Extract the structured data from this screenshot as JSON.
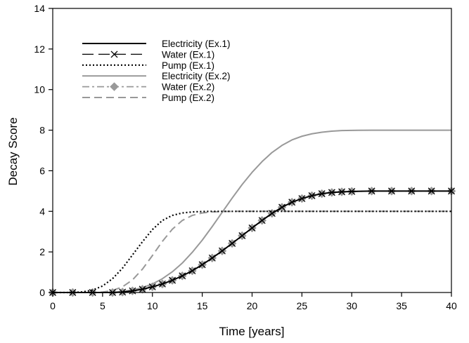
{
  "chart_data": {
    "type": "line",
    "title": "",
    "xlabel": "Time [years]",
    "ylabel": "Decay Score",
    "xlim": [
      0,
      40
    ],
    "ylim": [
      0,
      14
    ],
    "xticks": [
      0,
      5,
      10,
      15,
      20,
      25,
      30,
      35,
      40
    ],
    "yticks": [
      0,
      2,
      4,
      6,
      8,
      10,
      12,
      14
    ],
    "grid": false,
    "legend_position": "top-left",
    "series": [
      {
        "name": "Electricity (Ex.1)",
        "color": "#000000",
        "style": "solid",
        "x": [
          0,
          2,
          4,
          6,
          7,
          8,
          9,
          10,
          11,
          12,
          13,
          14,
          15,
          16,
          17,
          18,
          19,
          20,
          21,
          22,
          23,
          24,
          25,
          26,
          27,
          28,
          29,
          30,
          32,
          34,
          36,
          38,
          40
        ],
        "y": [
          0,
          0,
          0,
          0,
          0.02,
          0.08,
          0.16,
          0.28,
          0.42,
          0.6,
          0.82,
          1.07,
          1.37,
          1.7,
          2.05,
          2.42,
          2.8,
          3.18,
          3.55,
          3.9,
          4.2,
          4.45,
          4.63,
          4.77,
          4.87,
          4.93,
          4.96,
          4.98,
          5,
          5,
          5,
          5,
          5
        ]
      },
      {
        "name": "Water (Ex.1)",
        "color": "#000000",
        "style": "longdash-x",
        "x": [
          0,
          2,
          4,
          6,
          7,
          8,
          9,
          10,
          11,
          12,
          13,
          14,
          15,
          16,
          17,
          18,
          19,
          20,
          21,
          22,
          23,
          24,
          25,
          26,
          27,
          28,
          29,
          30,
          32,
          34,
          36,
          38,
          40
        ],
        "y": [
          0,
          0,
          0,
          0,
          0.02,
          0.08,
          0.16,
          0.28,
          0.42,
          0.6,
          0.82,
          1.07,
          1.37,
          1.7,
          2.05,
          2.42,
          2.8,
          3.18,
          3.55,
          3.9,
          4.2,
          4.45,
          4.63,
          4.77,
          4.87,
          4.93,
          4.96,
          4.98,
          5,
          5,
          5,
          5,
          5
        ]
      },
      {
        "name": "Pump (Ex.1)",
        "color": "#000000",
        "style": "dotted",
        "x": [
          0,
          2,
          3,
          4,
          5,
          6,
          7,
          8,
          9,
          10,
          11,
          12,
          13,
          14,
          15,
          16,
          18,
          20,
          25,
          30,
          35,
          40
        ],
        "y": [
          0,
          0,
          0.03,
          0.12,
          0.32,
          0.68,
          1.2,
          1.85,
          2.5,
          3.1,
          3.55,
          3.8,
          3.92,
          3.97,
          3.99,
          4,
          4,
          4,
          4,
          4,
          4,
          4
        ]
      },
      {
        "name": "Electricity (Ex.2)",
        "color": "#999999",
        "style": "solid",
        "x": [
          0,
          4,
          6,
          7,
          8,
          9,
          10,
          11,
          12,
          13,
          14,
          15,
          16,
          17,
          18,
          19,
          20,
          21,
          22,
          23,
          24,
          25,
          26,
          27,
          28,
          29,
          30,
          32,
          35,
          40
        ],
        "y": [
          0,
          0,
          0,
          0.05,
          0.12,
          0.24,
          0.42,
          0.68,
          1.02,
          1.45,
          1.98,
          2.58,
          3.25,
          3.95,
          4.65,
          5.32,
          5.92,
          6.45,
          6.9,
          7.25,
          7.52,
          7.7,
          7.82,
          7.9,
          7.95,
          7.98,
          7.99,
          8,
          8,
          8
        ]
      },
      {
        "name": "Water (Ex.2)",
        "color": "#999999",
        "style": "dashdot-diamond",
        "x": [
          0,
          2,
          4,
          6,
          7,
          8,
          9,
          10,
          11,
          12,
          13,
          14,
          15,
          16,
          17,
          18,
          19,
          20,
          21,
          22,
          23,
          24,
          25,
          26,
          27,
          28,
          29,
          30,
          32,
          34,
          36,
          38,
          40
        ],
        "y": [
          0,
          0,
          0,
          0,
          0.02,
          0.08,
          0.16,
          0.28,
          0.42,
          0.6,
          0.82,
          1.07,
          1.37,
          1.7,
          2.05,
          2.42,
          2.8,
          3.18,
          3.55,
          3.9,
          4.2,
          4.45,
          4.63,
          4.77,
          4.87,
          4.93,
          4.96,
          4.98,
          5,
          5,
          5,
          5,
          5
        ]
      },
      {
        "name": "Pump (Ex.2)",
        "color": "#999999",
        "style": "dashed",
        "x": [
          0,
          4,
          5,
          6,
          7,
          8,
          9,
          10,
          11,
          12,
          13,
          14,
          15,
          16,
          17,
          18,
          20,
          25,
          30,
          35,
          40
        ],
        "y": [
          0,
          0,
          0.02,
          0.1,
          0.28,
          0.62,
          1.15,
          1.82,
          2.52,
          3.12,
          3.55,
          3.8,
          3.92,
          3.97,
          3.99,
          4,
          4,
          4,
          4,
          4,
          4
        ]
      }
    ]
  }
}
